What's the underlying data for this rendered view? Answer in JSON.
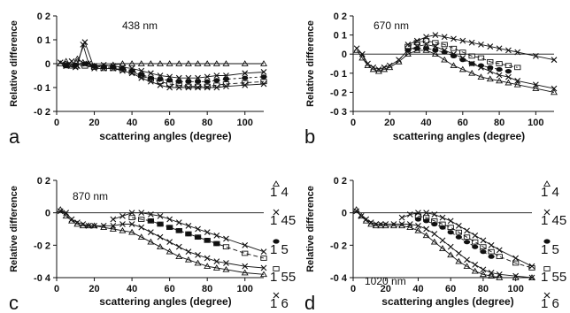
{
  "chart_data": [
    {
      "type": "scatter",
      "panel_letter": "a",
      "annotation": "438 nm",
      "xlabel": "scattering angles (degree)",
      "ylabel": "Relative difference",
      "xlim": [
        0,
        110
      ],
      "ylim": [
        -0.2,
        0.2
      ],
      "xticks": [
        "0",
        "20",
        "40",
        "60",
        "80",
        "100"
      ],
      "yticks": [
        {
          "value": 0.2,
          "label": "0 2"
        },
        {
          "value": 0.1,
          "label": "0 1"
        },
        {
          "value": 0,
          "label": "0"
        },
        {
          "value": -0.1,
          "label": "-0 1"
        },
        {
          "value": -0.2,
          "label": "-0 2"
        }
      ],
      "series": [
        {
          "name": "1 4",
          "marker": "triangle",
          "x": [
            2,
            5,
            8,
            11,
            14,
            17,
            20,
            25,
            30,
            35,
            40,
            45,
            50,
            55,
            60,
            65,
            70,
            75,
            80,
            85,
            90,
            100,
            110
          ],
          "y": [
            0,
            0.01,
            -0.01,
            0.02,
            0.005,
            0,
            -0.01,
            -0.01,
            -0.005,
            0,
            0,
            0,
            0,
            0,
            0,
            0,
            0,
            0,
            0,
            0,
            0,
            0,
            0
          ]
        },
        {
          "name": "1 45",
          "marker": "x",
          "x": [
            2,
            5,
            8,
            11,
            14,
            17,
            20,
            25,
            30,
            35,
            40,
            45,
            50,
            55,
            60,
            65,
            70,
            75,
            80,
            85,
            90,
            100,
            110
          ],
          "y": [
            0.005,
            -0.005,
            0.01,
            -0.01,
            0.08,
            0,
            -0.01,
            -0.005,
            -0.01,
            -0.015,
            -0.02,
            -0.03,
            -0.04,
            -0.05,
            -0.055,
            -0.06,
            -0.06,
            -0.06,
            -0.055,
            -0.05,
            -0.05,
            -0.04,
            -0.035
          ]
        },
        {
          "name": "1 5",
          "marker": "ellipse",
          "x": [
            5,
            10,
            15,
            20,
            25,
            30,
            35,
            40,
            45,
            50,
            55,
            60,
            65,
            70,
            75,
            80,
            85,
            90,
            100,
            110
          ],
          "y": [
            -0.01,
            -0.005,
            0,
            -0.01,
            -0.015,
            -0.015,
            -0.02,
            -0.03,
            -0.045,
            -0.06,
            -0.065,
            -0.07,
            -0.075,
            -0.075,
            -0.075,
            -0.075,
            -0.07,
            -0.065,
            -0.06,
            -0.055
          ]
        },
        {
          "name": "1 55",
          "marker": "square",
          "x": [
            5,
            10,
            15,
            20,
            25,
            30,
            35,
            40,
            45,
            50,
            55,
            60,
            65,
            70,
            75,
            80,
            85,
            90,
            100,
            110
          ],
          "y": [
            -0.005,
            -0.01,
            -0.01,
            -0.015,
            -0.02,
            -0.02,
            -0.025,
            -0.035,
            -0.05,
            -0.065,
            -0.075,
            -0.085,
            -0.09,
            -0.095,
            -0.095,
            -0.095,
            -0.09,
            -0.085,
            -0.08,
            -0.075
          ]
        },
        {
          "name": "1 6",
          "marker": "x",
          "x": [
            5,
            10,
            15,
            20,
            25,
            30,
            35,
            40,
            45,
            50,
            55,
            60,
            65,
            70,
            75,
            80,
            85,
            90,
            100,
            110
          ],
          "y": [
            -0.01,
            -0.015,
            0.09,
            -0.02,
            -0.02,
            -0.02,
            -0.03,
            -0.04,
            -0.06,
            -0.075,
            -0.09,
            -0.1,
            -0.1,
            -0.1,
            -0.1,
            -0.1,
            -0.1,
            -0.095,
            -0.09,
            -0.085
          ]
        }
      ]
    },
    {
      "type": "scatter",
      "panel_letter": "b",
      "annotation": "670 nm",
      "xlabel": "scattering angles (degree)",
      "ylabel": "Relative difference",
      "xlim": [
        0,
        110
      ],
      "ylim": [
        -0.3,
        0.2
      ],
      "xticks": [
        "0",
        "20",
        "40",
        "60",
        "80",
        "100"
      ],
      "yticks": [
        {
          "value": 0.2,
          "label": "0 2"
        },
        {
          "value": 0.1,
          "label": "0 1"
        },
        {
          "value": 0,
          "label": "0"
        },
        {
          "value": -0.1,
          "label": "-0 1"
        },
        {
          "value": -0.2,
          "label": "-0 2"
        },
        {
          "value": -0.3,
          "label": "-0 3"
        }
      ],
      "series": [
        {
          "name": "1 4",
          "marker": "triangle",
          "x": [
            2,
            5,
            8,
            11,
            14,
            17,
            20,
            25,
            30,
            35,
            40,
            45,
            50,
            55,
            60,
            65,
            70,
            75,
            80,
            85,
            90,
            100,
            110
          ],
          "y": [
            0.02,
            -0.02,
            -0.06,
            -0.08,
            -0.09,
            -0.08,
            -0.07,
            -0.04,
            0,
            0.02,
            0.02,
            0,
            -0.03,
            -0.06,
            -0.08,
            -0.1,
            -0.12,
            -0.13,
            -0.14,
            -0.15,
            -0.16,
            -0.18,
            -0.2
          ]
        },
        {
          "name": "1 45",
          "marker": "x",
          "x": [
            2,
            5,
            8,
            11,
            14,
            17,
            20,
            25,
            30,
            35,
            40,
            45,
            50,
            55,
            60,
            65,
            70,
            75,
            80,
            85,
            90,
            100,
            110
          ],
          "y": [
            0.03,
            0,
            -0.05,
            -0.07,
            -0.08,
            -0.07,
            -0.06,
            -0.03,
            0.02,
            0.04,
            0.05,
            0.04,
            0.02,
            0,
            -0.02,
            -0.05,
            -0.07,
            -0.09,
            -0.11,
            -0.12,
            -0.14,
            -0.16,
            -0.18
          ]
        },
        {
          "name": "1 5",
          "marker": "ellipse",
          "x": [
            30,
            35,
            40,
            45,
            50,
            55,
            60,
            65,
            70,
            75,
            80,
            85
          ],
          "y": [
            0.02,
            0.03,
            0.03,
            0.02,
            0.01,
            -0.01,
            -0.03,
            -0.05,
            -0.06,
            -0.07,
            -0.08,
            -0.09
          ]
        },
        {
          "name": "1 55",
          "marker": "square",
          "x": [
            30,
            35,
            40,
            45,
            50,
            55,
            60,
            65,
            70,
            75,
            80,
            85,
            90
          ],
          "y": [
            0.04,
            0.06,
            0.07,
            0.06,
            0.05,
            0.03,
            0.01,
            -0.01,
            -0.02,
            -0.04,
            -0.05,
            -0.06,
            -0.07
          ]
        },
        {
          "name": "1 6",
          "marker": "x",
          "x": [
            30,
            35,
            40,
            45,
            50,
            55,
            60,
            65,
            70,
            75,
            80,
            85,
            90,
            100,
            110
          ],
          "y": [
            0.05,
            0.07,
            0.09,
            0.1,
            0.09,
            0.08,
            0.07,
            0.06,
            0.05,
            0.04,
            0.03,
            0.02,
            0.01,
            -0.01,
            -0.03
          ]
        }
      ]
    },
    {
      "type": "scatter",
      "panel_letter": "c",
      "annotation": "870 nm",
      "xlabel": "scattering angles (degree)",
      "ylabel": "Relative difference",
      "xlim": [
        0,
        110
      ],
      "ylim": [
        -0.4,
        0.2
      ],
      "xticks": [
        "0",
        "20",
        "40",
        "60",
        "80",
        "100"
      ],
      "yticks": [
        {
          "value": 0.2,
          "label": "0 2"
        },
        {
          "value": 0,
          "label": "0"
        },
        {
          "value": -0.2,
          "label": "-0 2"
        },
        {
          "value": -0.4,
          "label": "-0 4"
        }
      ],
      "series": [
        {
          "name": "1 4",
          "marker": "triangle",
          "x": [
            2,
            5,
            8,
            11,
            14,
            17,
            20,
            25,
            30,
            35,
            40,
            45,
            50,
            55,
            60,
            65,
            70,
            75,
            80,
            85,
            90,
            100,
            110
          ],
          "y": [
            0.02,
            -0.02,
            -0.05,
            -0.07,
            -0.08,
            -0.08,
            -0.08,
            -0.09,
            -0.1,
            -0.11,
            -0.12,
            -0.15,
            -0.18,
            -0.21,
            -0.24,
            -0.27,
            -0.29,
            -0.31,
            -0.33,
            -0.34,
            -0.35,
            -0.37,
            -0.38
          ]
        },
        {
          "name": "1 45",
          "marker": "x",
          "x": [
            2,
            5,
            8,
            11,
            14,
            17,
            20,
            25,
            30,
            35,
            40,
            45,
            50,
            55,
            60,
            65,
            70,
            75,
            80,
            85,
            90,
            100,
            110
          ],
          "y": [
            0.01,
            0,
            -0.04,
            -0.06,
            -0.07,
            -0.08,
            -0.08,
            -0.08,
            -0.08,
            -0.07,
            -0.07,
            -0.09,
            -0.12,
            -0.15,
            -0.18,
            -0.21,
            -0.24,
            -0.26,
            -0.28,
            -0.3,
            -0.31,
            -0.33,
            -0.34
          ]
        },
        {
          "name": "1 5",
          "marker": "ellipse",
          "x": [
            50,
            55,
            60,
            65,
            70,
            75,
            80,
            85
          ],
          "y": [
            -0.05,
            -0.07,
            -0.09,
            -0.11,
            -0.13,
            -0.15,
            -0.17,
            -0.19
          ]
        },
        {
          "name": "1 55",
          "marker": "square",
          "x": [
            40,
            45,
            50,
            55,
            60,
            65,
            70,
            75,
            80,
            85,
            90,
            100,
            110
          ],
          "y": [
            -0.03,
            -0.04,
            -0.05,
            -0.07,
            -0.09,
            -0.11,
            -0.13,
            -0.15,
            -0.17,
            -0.19,
            -0.21,
            -0.25,
            -0.28
          ]
        },
        {
          "name": "1 6",
          "marker": "x",
          "x": [
            30,
            35,
            40,
            45,
            50,
            55,
            60,
            65,
            70,
            75,
            80,
            85,
            90,
            100,
            110
          ],
          "y": [
            -0.04,
            -0.02,
            0,
            0,
            -0.01,
            -0.02,
            -0.04,
            -0.06,
            -0.08,
            -0.1,
            -0.12,
            -0.14,
            -0.16,
            -0.2,
            -0.24
          ]
        }
      ]
    },
    {
      "type": "scatter",
      "panel_letter": "d",
      "annotation": "1020 nm",
      "xlabel": "scattering angles (degree)",
      "ylabel": "Relative difference",
      "xlim": [
        0,
        110
      ],
      "ylim": [
        -0.4,
        0.2
      ],
      "xticks": [
        "0",
        "20",
        "40",
        "60",
        "80",
        "100"
      ],
      "yticks": [
        {
          "value": 0.2,
          "label": "0 2"
        },
        {
          "value": 0,
          "label": "0"
        },
        {
          "value": -0.2,
          "label": "-0 2"
        },
        {
          "value": -0.4,
          "label": "-0 4"
        }
      ],
      "series": [
        {
          "name": "1 4",
          "marker": "triangle",
          "x": [
            2,
            5,
            8,
            11,
            14,
            17,
            20,
            25,
            30,
            35,
            40,
            45,
            50,
            55,
            60,
            65,
            70,
            75,
            80,
            85,
            90,
            100,
            110
          ],
          "y": [
            0.02,
            -0.02,
            -0.05,
            -0.07,
            -0.08,
            -0.08,
            -0.08,
            -0.08,
            -0.08,
            -0.09,
            -0.11,
            -0.14,
            -0.18,
            -0.22,
            -0.26,
            -0.3,
            -0.33,
            -0.36,
            -0.38,
            -0.39,
            -0.4,
            -0.4,
            -0.4
          ]
        },
        {
          "name": "1 45",
          "marker": "x",
          "x": [
            2,
            5,
            8,
            11,
            14,
            17,
            20,
            25,
            30,
            35,
            40,
            45,
            50,
            55,
            60,
            65,
            70,
            75,
            80,
            85,
            90,
            100,
            110
          ],
          "y": [
            0.01,
            -0.02,
            -0.04,
            -0.06,
            -0.07,
            -0.07,
            -0.07,
            -0.07,
            -0.07,
            -0.07,
            -0.08,
            -0.1,
            -0.13,
            -0.17,
            -0.21,
            -0.25,
            -0.29,
            -0.32,
            -0.35,
            -0.37,
            -0.38,
            -0.39,
            -0.4
          ]
        },
        {
          "name": "1 5",
          "marker": "ellipse",
          "x": [
            40,
            45,
            50,
            55,
            60,
            65,
            70,
            75,
            80,
            85
          ],
          "y": [
            -0.04,
            -0.05,
            -0.07,
            -0.09,
            -0.12,
            -0.15,
            -0.18,
            -0.21,
            -0.24,
            -0.27
          ]
        },
        {
          "name": "1 55",
          "marker": "square",
          "x": [
            40,
            45,
            50,
            55,
            60,
            65,
            70,
            75,
            80,
            85,
            90,
            100,
            110
          ],
          "y": [
            -0.02,
            -0.03,
            -0.05,
            -0.07,
            -0.09,
            -0.12,
            -0.15,
            -0.18,
            -0.21,
            -0.24,
            -0.27,
            -0.31,
            -0.34
          ]
        },
        {
          "name": "1 6",
          "marker": "x",
          "x": [
            30,
            35,
            40,
            45,
            50,
            55,
            60,
            65,
            70,
            75,
            80,
            85,
            90,
            100,
            110
          ],
          "y": [
            -0.03,
            -0.01,
            0,
            0,
            -0.01,
            -0.03,
            -0.05,
            -0.08,
            -0.11,
            -0.14,
            -0.17,
            -0.2,
            -0.23,
            -0.28,
            -0.33
          ]
        }
      ]
    }
  ],
  "legend": {
    "items": [
      {
        "label": "1 4",
        "marker": "triangle"
      },
      {
        "label": "1 45",
        "marker": "x"
      },
      {
        "label": "1 5",
        "marker": "ellipse"
      },
      {
        "label": "1 55",
        "marker": "square"
      },
      {
        "label": "1 6",
        "marker": "x"
      }
    ]
  }
}
